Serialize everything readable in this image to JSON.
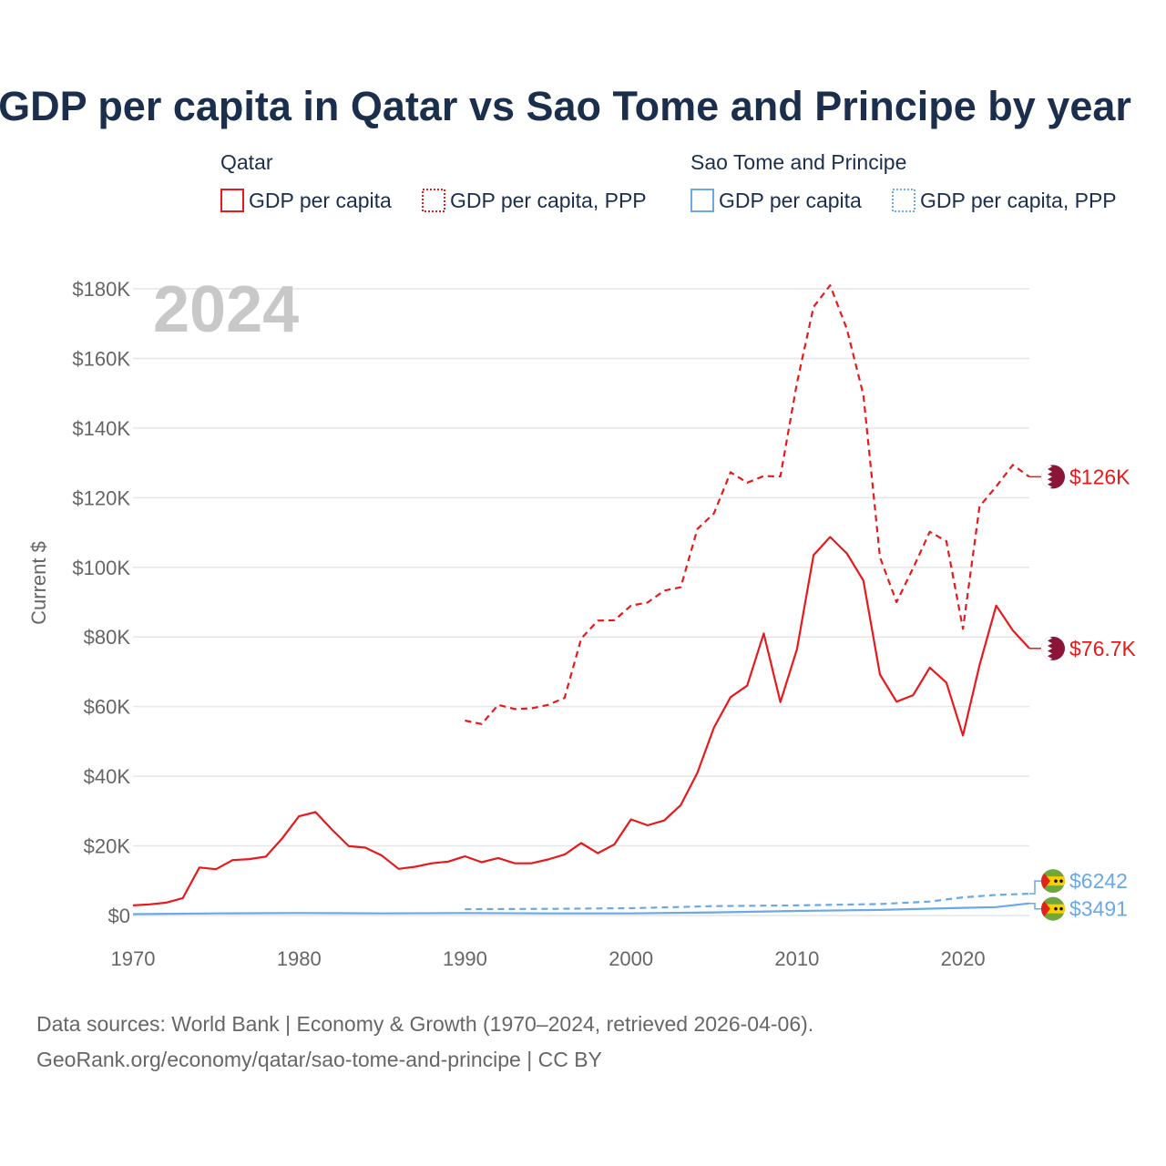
{
  "chart_data": {
    "type": "line",
    "title": "GDP per capita in Qatar vs Sao Tome and Principe by year",
    "year_watermark": "2024",
    "ylabel": "Current $",
    "xlabel": "",
    "xlim": [
      1970,
      2024
    ],
    "ylim": [
      0,
      180000
    ],
    "x_ticks": [
      1970,
      1980,
      1990,
      2000,
      2010,
      2020
    ],
    "y_ticks": [
      {
        "value": 0,
        "label": "$0"
      },
      {
        "value": 20000,
        "label": "$20K"
      },
      {
        "value": 40000,
        "label": "$40K"
      },
      {
        "value": 60000,
        "label": "$60K"
      },
      {
        "value": 80000,
        "label": "$80K"
      },
      {
        "value": 100000,
        "label": "$100K"
      },
      {
        "value": 120000,
        "label": "$120K"
      },
      {
        "value": 140000,
        "label": "$140K"
      },
      {
        "value": 160000,
        "label": "$160K"
      },
      {
        "value": 180000,
        "label": "$180K"
      }
    ],
    "grid": true,
    "legend": {
      "groups": [
        {
          "name": "Qatar",
          "color": "#e8191c",
          "items": [
            "GDP per capita",
            "GDP per capita, PPP"
          ]
        },
        {
          "name": "Sao Tome and Principe",
          "color": "#6aa8e6",
          "items": [
            "GDP per capita",
            "GDP per capita, PPP"
          ]
        }
      ]
    },
    "series": [
      {
        "name": "Qatar GDP per capita",
        "color": "#e8191c",
        "dash": "solid",
        "end_label": "$76.7K",
        "flag": "qatar",
        "x": [
          1970,
          1971,
          1972,
          1973,
          1974,
          1975,
          1976,
          1977,
          1978,
          1979,
          1980,
          1981,
          1982,
          1983,
          1984,
          1985,
          1986,
          1987,
          1988,
          1989,
          1990,
          1991,
          1992,
          1993,
          1994,
          1995,
          1996,
          1997,
          1998,
          1999,
          2000,
          2001,
          2002,
          2003,
          2004,
          2005,
          2006,
          2007,
          2008,
          2009,
          2010,
          2011,
          2012,
          2013,
          2014,
          2015,
          2016,
          2017,
          2018,
          2019,
          2020,
          2021,
          2022,
          2023,
          2024
        ],
        "values": [
          2900,
          3200,
          3700,
          5000,
          13800,
          13300,
          15900,
          16200,
          16900,
          22200,
          28500,
          29700,
          24600,
          19900,
          19500,
          17200,
          13400,
          14000,
          15000,
          15500,
          17000,
          15300,
          16500,
          15000,
          15000,
          16100,
          17500,
          20800,
          17900,
          20400,
          27600,
          25900,
          27300,
          31700,
          41000,
          54000,
          62700,
          66000,
          81000,
          61300,
          76500,
          103500,
          108700,
          104000,
          96200,
          69200,
          61400,
          63300,
          71200,
          66900,
          51700,
          71900,
          89000,
          81900,
          76700
        ]
      },
      {
        "name": "Qatar GDP per capita, PPP",
        "color": "#e8191c",
        "dash": "dashed",
        "end_label": "$126K",
        "flag": "qatar",
        "x": [
          1990,
          1991,
          1992,
          1993,
          1994,
          1995,
          1996,
          1997,
          1998,
          1999,
          2000,
          2001,
          2002,
          2003,
          2004,
          2005,
          2006,
          2007,
          2008,
          2009,
          2010,
          2011,
          2012,
          2013,
          2014,
          2015,
          2016,
          2017,
          2018,
          2019,
          2020,
          2021,
          2022,
          2023,
          2024
        ],
        "values": [
          56000,
          55000,
          60500,
          59300,
          59500,
          60500,
          62500,
          79500,
          84700,
          84800,
          89000,
          89900,
          93300,
          94300,
          111000,
          115500,
          127300,
          124300,
          126200,
          126100,
          153000,
          174800,
          181000,
          168500,
          149500,
          102900,
          90000,
          99800,
          110200,
          107500,
          82300,
          117500,
          123200,
          129400,
          126000
        ]
      },
      {
        "name": "Sao Tome and Principe GDP per capita",
        "color": "#6aa8e6",
        "dash": "solid",
        "end_label": "$3491",
        "flag": "sao-tome",
        "x": [
          1970,
          1975,
          1980,
          1985,
          1990,
          1995,
          2000,
          2005,
          2010,
          2015,
          2020,
          2022,
          2024
        ],
        "values": [
          400,
          600,
          700,
          600,
          700,
          600,
          600,
          900,
          1300,
          1600,
          2200,
          2400,
          3491
        ]
      },
      {
        "name": "Sao Tome and Principe GDP per capita, PPP",
        "color": "#6aa8e6",
        "dash": "dashed",
        "end_label": "$6242",
        "flag": "sao-tome",
        "x": [
          1990,
          1995,
          2000,
          2005,
          2010,
          2015,
          2018,
          2020,
          2022,
          2024
        ],
        "values": [
          1800,
          1900,
          2100,
          2700,
          2900,
          3300,
          4000,
          5200,
          5900,
          6242
        ]
      }
    ]
  },
  "source": {
    "line1": "Data sources: World Bank | Economy & Growth (1970–2024, retrieved 2026-04-06).",
    "line2": "GeoRank.org/economy/qatar/sao-tome-and-principe | CC BY"
  }
}
